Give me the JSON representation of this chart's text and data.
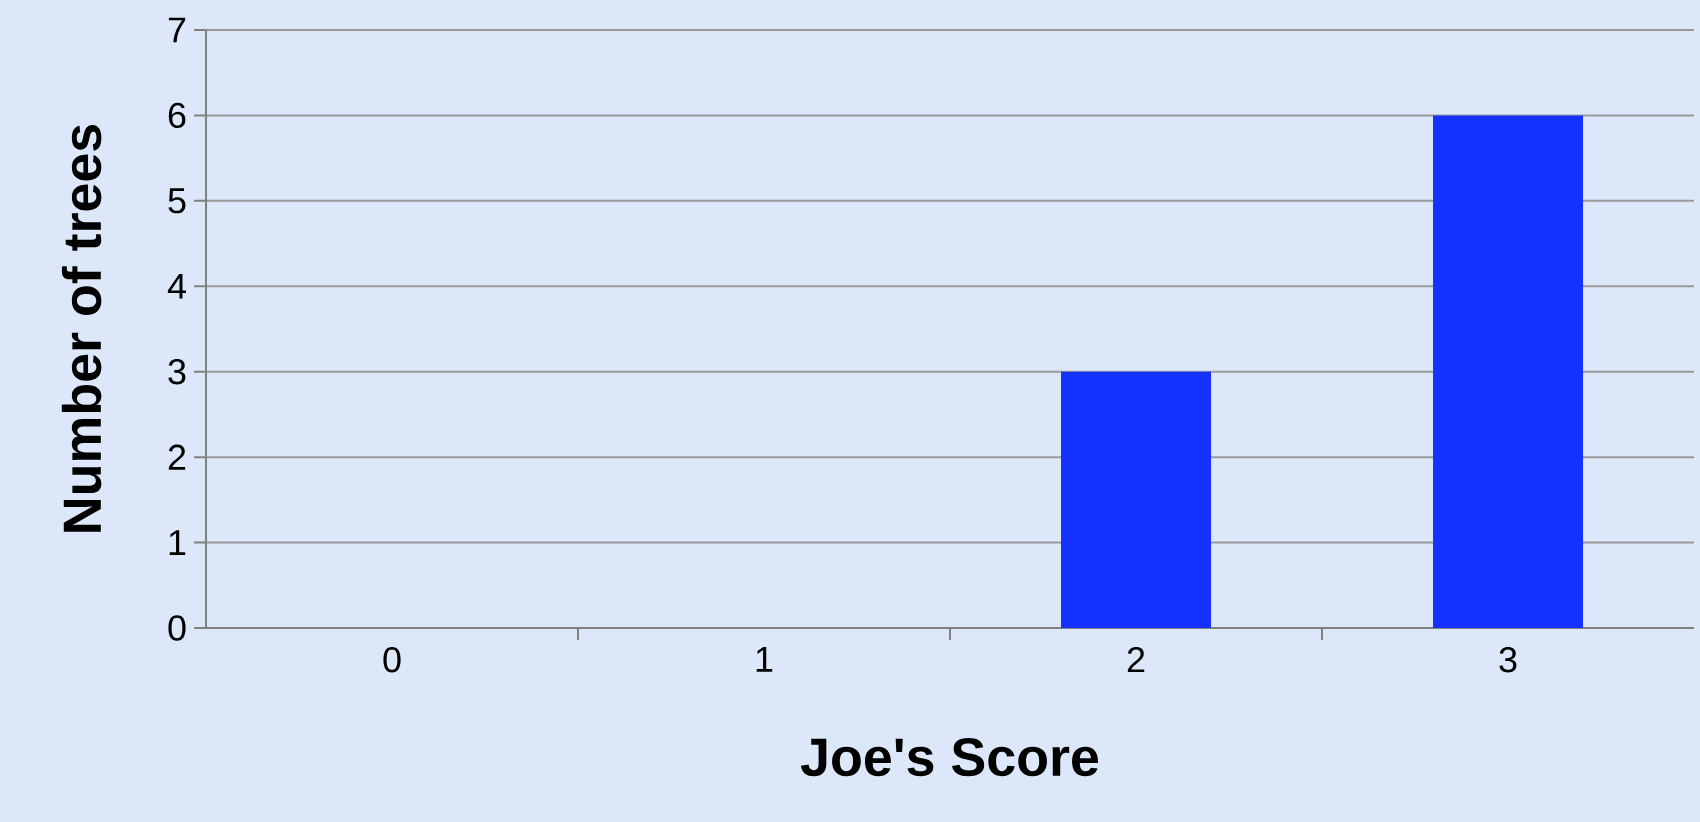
{
  "chart_data": {
    "type": "bar",
    "xlabel": "Joe's Score",
    "ylabel": "Number of trees",
    "categories": [
      "0",
      "1",
      "2",
      "3"
    ],
    "values": [
      0,
      0,
      3,
      6
    ],
    "color": "#1432ff",
    "ylim": [
      0,
      7
    ],
    "yticks": [
      0,
      1,
      2,
      3,
      4,
      5,
      6,
      7
    ],
    "grid": "y"
  }
}
